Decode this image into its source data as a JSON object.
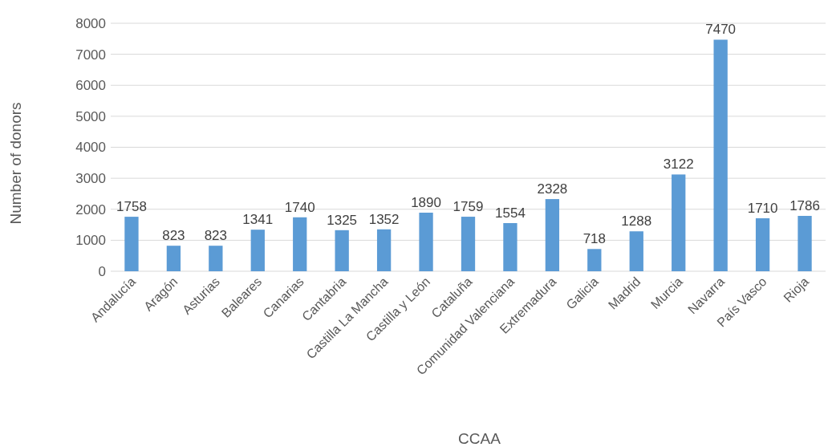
{
  "chart_data": {
    "type": "bar",
    "xlabel": "CCAA",
    "ylabel": "Number of donors",
    "categories": [
      "Andalucía",
      "Aragón",
      "Asturias",
      "Baleares",
      "Canarias",
      "Cantabria",
      "Castilla La Mancha",
      "Castilla y León",
      "Cataluña",
      "Comunidad Valenciana",
      "Extremadura",
      "Galicia",
      "Madrid",
      "Murcia",
      "Navarra",
      "País Vasco",
      "Rioja"
    ],
    "values": [
      1758,
      823,
      823,
      1341,
      1740,
      1325,
      1352,
      1890,
      1759,
      1554,
      2328,
      718,
      1288,
      3122,
      7470,
      1710,
      1786
    ],
    "color": "#5b9bd5",
    "ylim": [
      0,
      8000
    ],
    "yticks": [
      0,
      1000,
      2000,
      3000,
      4000,
      5000,
      6000,
      7000,
      8000
    ],
    "grid": "y",
    "data_labels": true
  }
}
